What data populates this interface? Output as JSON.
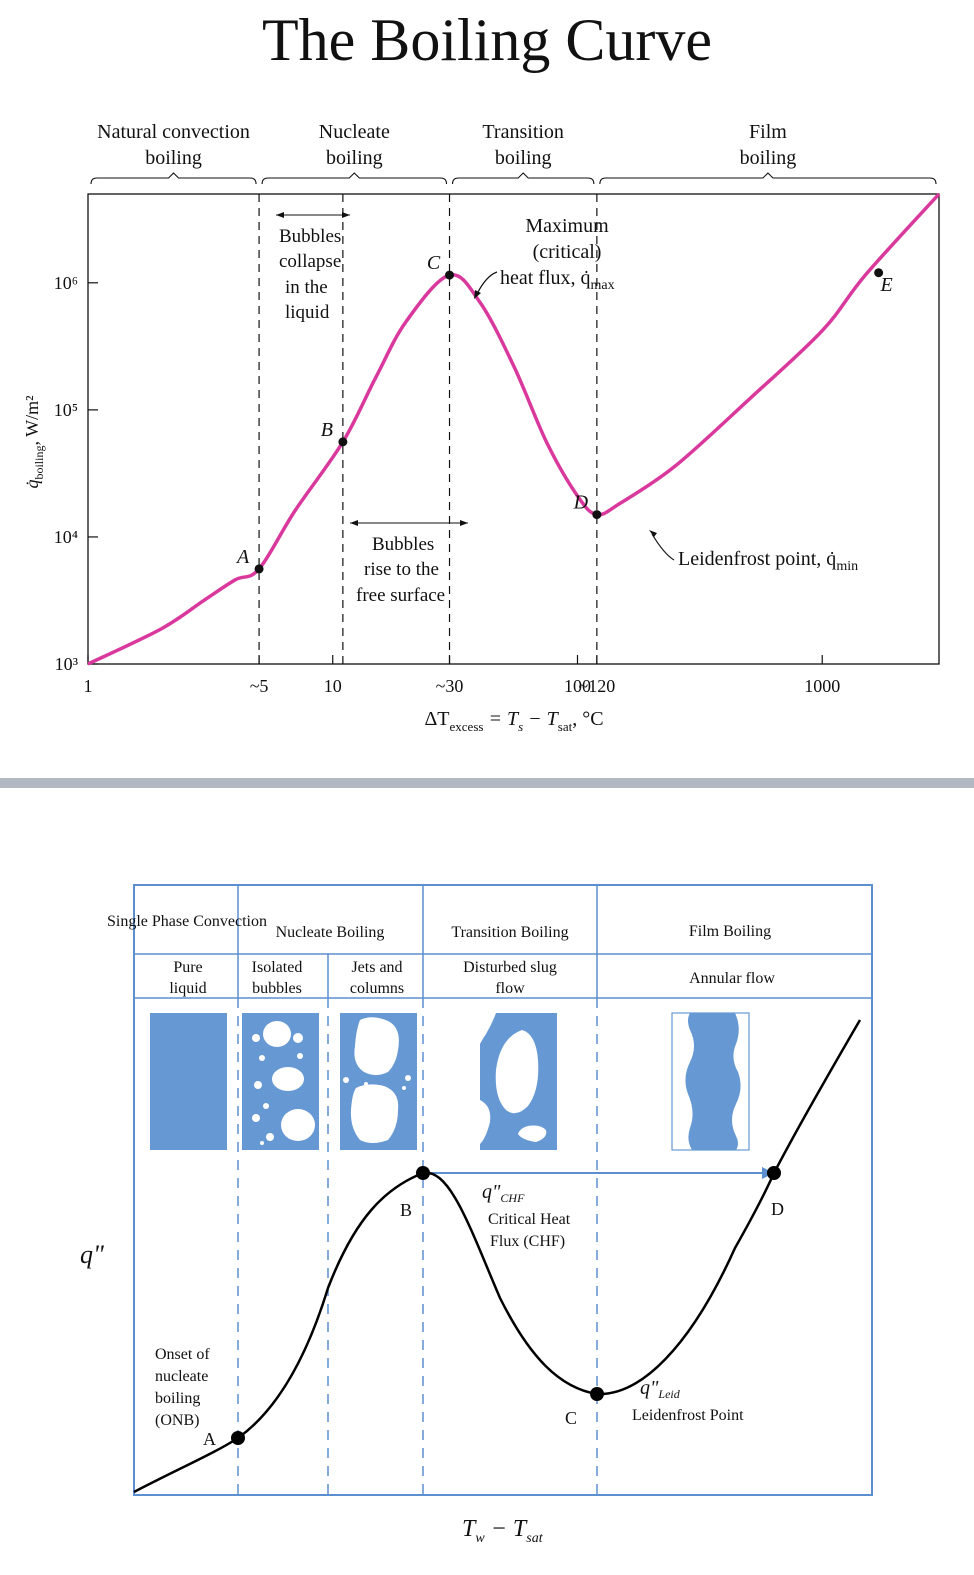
{
  "title": "The Boiling Curve",
  "chart_data": [
    {
      "type": "line",
      "xscale": "log",
      "yscale": "log",
      "xlim": [
        1,
        3000
      ],
      "ylim": [
        1000,
        5000000
      ],
      "xlabel": {
        "main": "ΔT",
        "sub1": "excess",
        "mid": " = T",
        "sub2": "s",
        "mid2": " − T",
        "sub3": "sat",
        "tail": ", °C"
      },
      "ylabel": {
        "main": "q̇",
        "sub": "boiling",
        "tail": ", W/m²"
      },
      "x_ticks": [
        {
          "value": 1,
          "label": "1"
        },
        {
          "value": 5,
          "label": "~5"
        },
        {
          "value": 10,
          "label": "10"
        },
        {
          "value": 30,
          "label": "~30"
        },
        {
          "value": 100,
          "label": "100"
        },
        {
          "value": 120,
          "label": "~120"
        },
        {
          "value": 1000,
          "label": "1000"
        }
      ],
      "y_ticks": [
        {
          "value": 1000,
          "label": "10³"
        },
        {
          "value": 10000,
          "label": "10⁴"
        },
        {
          "value": 100000,
          "label": "10⁵"
        },
        {
          "value": 1000000,
          "label": "10⁶"
        }
      ],
      "regions": [
        {
          "lines": [
            "Natural convection",
            "boiling"
          ],
          "x0": 1,
          "x1": 5
        },
        {
          "lines": [
            "Nucleate",
            "boiling"
          ],
          "x0": 5,
          "x1": 30
        },
        {
          "lines": [
            "Transition",
            "boiling"
          ],
          "x0": 30,
          "x1": 120
        },
        {
          "lines": [
            "Film",
            "boiling"
          ],
          "x0": 120,
          "x1": 3000
        }
      ],
      "boundaries": [
        5,
        11,
        30,
        120
      ],
      "series": [
        {
          "points": [
            [
              1,
              1000
            ],
            [
              2,
              1900
            ],
            [
              3,
              3200
            ],
            [
              4,
              4600
            ],
            [
              5,
              5600
            ],
            [
              7,
              16000
            ],
            [
              11,
              56000
            ],
            [
              15,
              180000
            ],
            [
              20,
              500000
            ],
            [
              30,
              1150000
            ],
            [
              40,
              700000
            ],
            [
              55,
              220000
            ],
            [
              75,
              55000
            ],
            [
              100,
              21000
            ],
            [
              120,
              15000
            ],
            [
              150,
              18500
            ],
            [
              250,
              36000
            ],
            [
              500,
              120000
            ],
            [
              1000,
              420000
            ],
            [
              1500,
              1150000
            ],
            [
              3000,
              5000000
            ]
          ]
        }
      ],
      "points": [
        {
          "label": "A",
          "x": 5,
          "y": 5600,
          "side": "left"
        },
        {
          "label": "B",
          "x": 11,
          "y": 56000,
          "side": "left"
        },
        {
          "label": "C",
          "x": 30,
          "y": 1150000,
          "side": "left"
        },
        {
          "label": "D",
          "x": 120,
          "y": 15000,
          "side": "left"
        },
        {
          "label": "E",
          "x": 1700,
          "y": 1200000,
          "side": "right"
        }
      ],
      "annotations": {
        "bubbles_collapse": [
          "Bubbles",
          "collapse",
          "in the",
          "liquid"
        ],
        "bubbles_rise": [
          "Bubbles",
          "rise to the",
          "free surface"
        ],
        "qmax": [
          "Maximum",
          "(critical)",
          "heat flux, q̇",
          "max"
        ],
        "qmin": [
          "Leidenfrost point, q̇",
          "min"
        ]
      },
      "colors": {
        "curve": "#d9389c"
      }
    },
    {
      "type": "line",
      "xlabel": {
        "main": "T",
        "sub1": "w",
        "mid": " − T",
        "sub2": "sat"
      },
      "ylabel": "q\"",
      "header_top": [
        "Single Phase Convection",
        "Nucleate Boiling",
        "Transition Boiling",
        "Film Boiling"
      ],
      "header_sub": [
        [
          "Pure",
          "liquid"
        ],
        [
          "Isolated",
          "bubbles"
        ],
        [
          "Jets and",
          "columns"
        ],
        [
          "Disturbed slug",
          "flow"
        ],
        [
          "Annular flow"
        ]
      ],
      "points": [
        {
          "label": "A"
        },
        {
          "label": "B"
        },
        {
          "label": "C"
        },
        {
          "label": "D"
        }
      ],
      "annotations": {
        "onb": [
          "Onset of",
          "nucleate",
          "boiling",
          "(ONB)"
        ],
        "chf": [
          "q\"",
          "CHF",
          "Critical Heat",
          "Flux (CHF)"
        ],
        "leid": [
          "q\"",
          "Leid",
          "Leidenfrost Point"
        ]
      },
      "colors": {
        "frame": "#5b8fd0",
        "fluid": "#6699d4",
        "label": "#cc2222",
        "curve": "#000000"
      }
    }
  ]
}
